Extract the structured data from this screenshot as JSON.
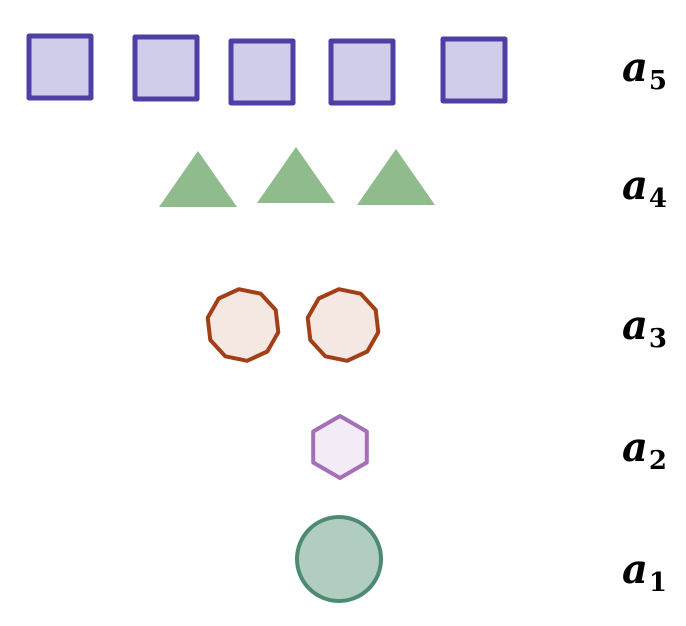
{
  "rows": [
    {
      "label_base": "a",
      "label_sub": "5",
      "shape": "square",
      "count": 5,
      "fill": "#d0cdea",
      "stroke": "#4e3fa5",
      "icon": "square-icon"
    },
    {
      "label_base": "a",
      "label_sub": "4",
      "shape": "triangle",
      "count": 3,
      "fill": "#8fbb8d",
      "stroke": "none",
      "icon": "triangle-icon"
    },
    {
      "label_base": "a",
      "label_sub": "3",
      "shape": "decagon",
      "count": 2,
      "fill": "#f5e8e3",
      "stroke": "#a23f16",
      "icon": "decagon-icon"
    },
    {
      "label_base": "a",
      "label_sub": "2",
      "shape": "hexagon",
      "count": 1,
      "fill": "#f3ecf6",
      "stroke": "#a56fb8",
      "icon": "hexagon-icon"
    },
    {
      "label_base": "a",
      "label_sub": "1",
      "shape": "circle",
      "count": 1,
      "fill": "#b1cdc0",
      "stroke": "#4d8a73",
      "icon": "circle-icon"
    }
  ]
}
